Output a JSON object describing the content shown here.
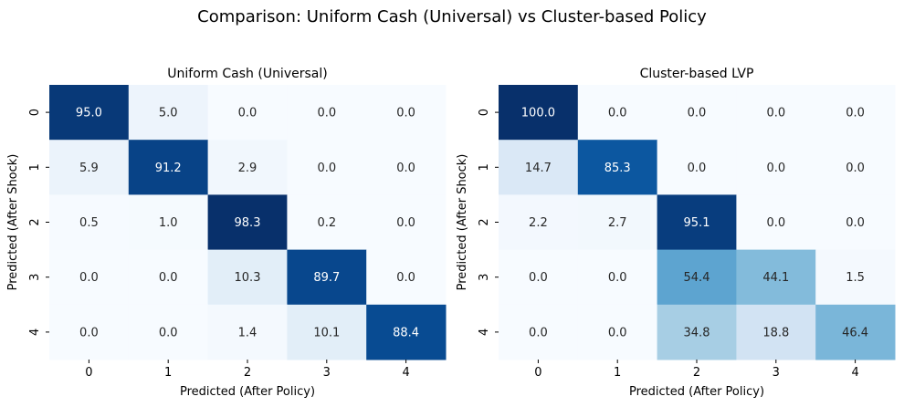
{
  "suptitle": "Comparison: Uniform Cash (Universal) vs Cluster-based Policy",
  "chart_data": [
    {
      "type": "heatmap",
      "title": "Uniform Cash (Universal)",
      "xlabel": "Predicted (After Policy)",
      "ylabel": "Predicted (After Shock)",
      "x_categories": [
        "0",
        "1",
        "2",
        "3",
        "4"
      ],
      "y_categories": [
        "0",
        "1",
        "2",
        "3",
        "4"
      ],
      "values": [
        [
          95.0,
          5.0,
          0.0,
          0.0,
          0.0
        ],
        [
          5.9,
          91.2,
          2.9,
          0.0,
          0.0
        ],
        [
          0.5,
          1.0,
          98.3,
          0.2,
          0.0
        ],
        [
          0.0,
          0.0,
          10.3,
          89.7,
          0.0
        ],
        [
          0.0,
          0.0,
          1.4,
          10.1,
          88.4
        ]
      ],
      "colormap": "Blues",
      "vmin": 0.0,
      "vmax": 98.3,
      "colorbar": false
    },
    {
      "type": "heatmap",
      "title": "Cluster-based LVP",
      "xlabel": "Predicted (After Policy)",
      "ylabel": "Predicted (After Shock)",
      "x_categories": [
        "0",
        "1",
        "2",
        "3",
        "4"
      ],
      "y_categories": [
        "0",
        "1",
        "2",
        "3",
        "4"
      ],
      "values": [
        [
          100.0,
          0.0,
          0.0,
          0.0,
          0.0
        ],
        [
          14.7,
          85.3,
          0.0,
          0.0,
          0.0
        ],
        [
          2.2,
          2.7,
          95.1,
          0.0,
          0.0
        ],
        [
          0.0,
          0.0,
          54.4,
          44.1,
          1.5
        ],
        [
          0.0,
          0.0,
          34.8,
          18.8,
          46.4
        ]
      ],
      "colormap": "Blues",
      "vmin": 0.0,
      "vmax": 100.0,
      "colorbar": false
    }
  ]
}
